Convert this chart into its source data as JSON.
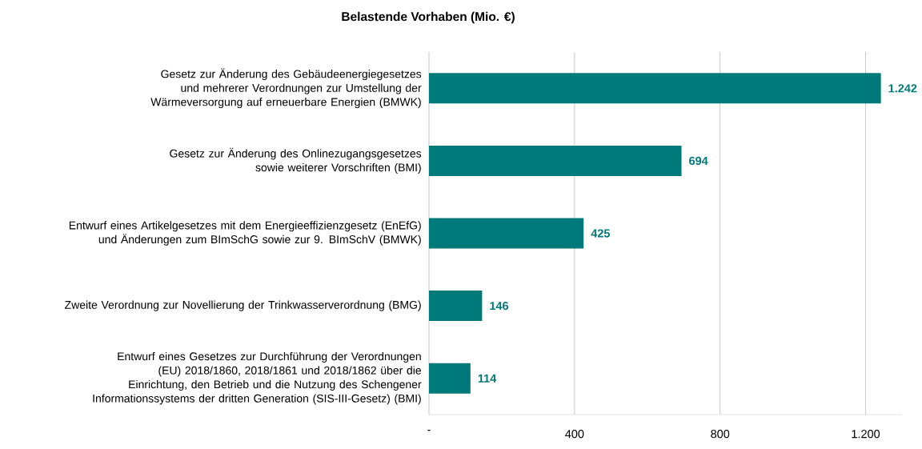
{
  "chart_data": {
    "type": "bar",
    "orientation": "horizontal",
    "title": "Belastende Vorhaben (Mio. €)",
    "categories": [
      "Gesetz zur Änderung des Gebäudeenergiegesetzes und mehrerer Verordnungen zur Umstellung der Wärmeversorgung auf erneuerbare Energien (BMWK)",
      "Gesetz zur Änderung des Onlinezugangsgesetzes sowie weiterer Vorschriften (BMI)",
      "Entwurf eines Artikelgesetzes mit dem Energieeffizienzgesetz (EnEfG) und Änderungen zum BImSchG sowie zur 9. BImSchV (BMWK)",
      "Zweite Verordnung zur Novellierung der Trinkwasserverordnung (BMG)",
      "Entwurf eines Gesetzes zur Durchführung der Verordnungen (EU) 2018/1860, 2018/1861 und 2018/1862 über die Einrichtung, den Betrieb und die Nutzung des Schengener Informationssystems der dritten Generation (SIS-III-Gesetz) (BMI)"
    ],
    "values": [
      1242,
      694,
      425,
      146,
      114
    ],
    "value_labels": [
      "1.242",
      "694",
      "425",
      "146",
      "114"
    ],
    "color": "#00797a",
    "xticks": [
      {
        "value": 0,
        "label": "-"
      },
      400,
      800,
      {
        "value": 1200,
        "label": "1.200"
      }
    ],
    "xlim": [
      0,
      1300
    ],
    "grid": "x"
  }
}
